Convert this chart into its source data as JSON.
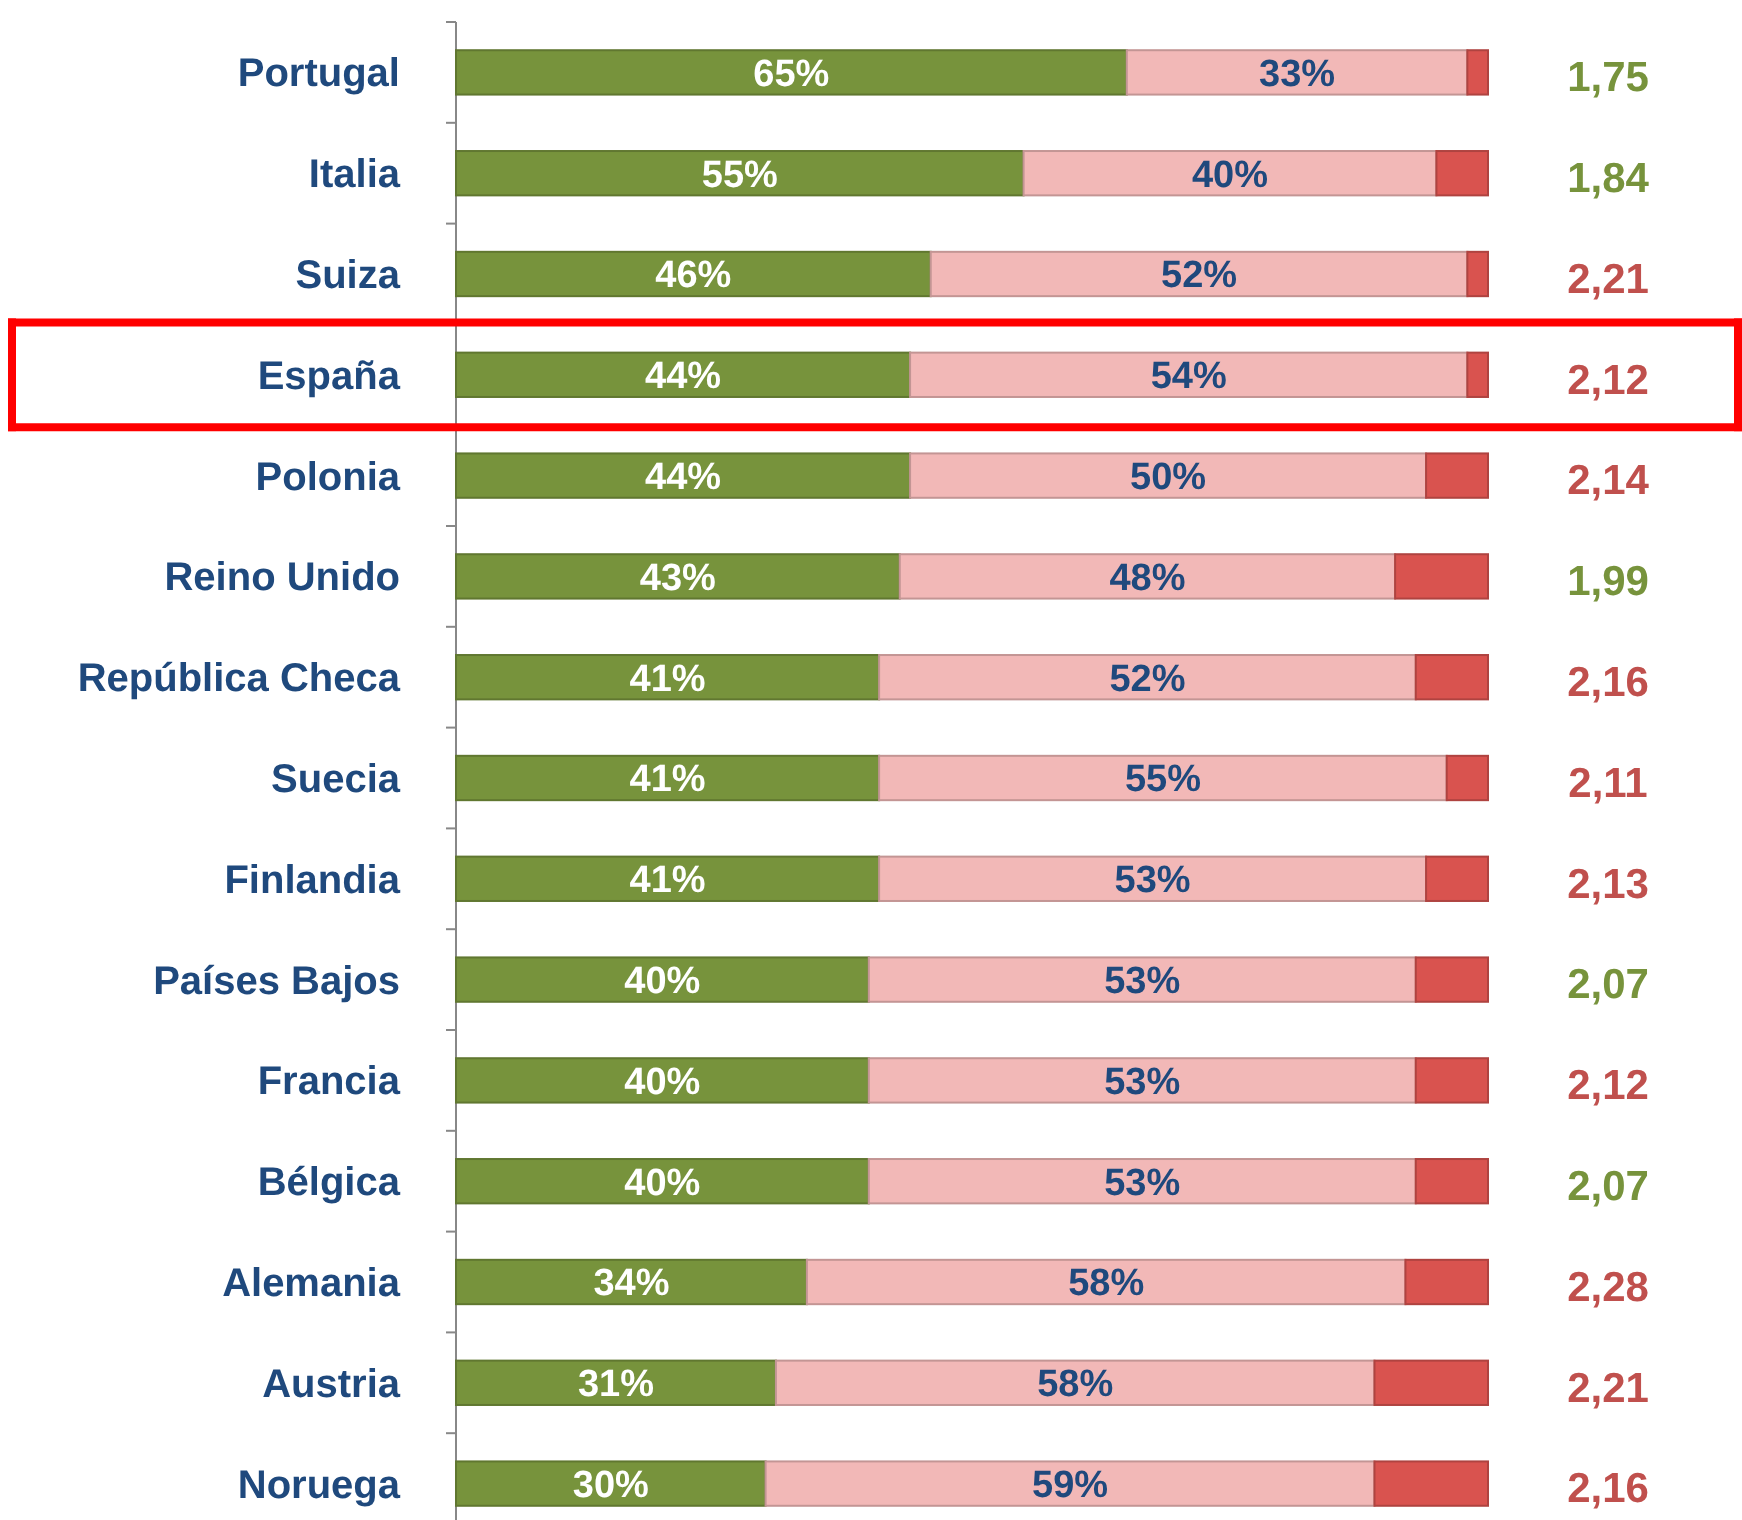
{
  "chart_data": [
    {
      "type": "bar",
      "orientation": "horizontal",
      "stacked": true,
      "xlim": [
        0,
        100
      ],
      "tick_labels": "y",
      "categories": [
        "Portugal",
        "Italia",
        "Suiza",
        "España",
        "Polonia",
        "Reino Unido",
        "República Checa",
        "Suecia",
        "Finlandia",
        "Países Bajos",
        "Francia",
        "Bélgica",
        "Alemania",
        "Austria",
        "Noruega"
      ],
      "series": [
        {
          "color": "#77933c",
          "values": [
            65,
            55,
            46,
            44,
            44,
            43,
            41,
            41,
            41,
            40,
            40,
            40,
            34,
            31,
            30
          ],
          "value_labels": [
            "65%",
            "55%",
            "46%",
            "44%",
            "44%",
            "43%",
            "41%",
            "41%",
            "41%",
            "40%",
            "40%",
            "40%",
            "34%",
            "31%",
            "30%"
          ]
        },
        {
          "color": "#f2b8b7",
          "values": [
            33,
            40,
            52,
            54,
            50,
            48,
            52,
            55,
            53,
            53,
            53,
            53,
            58,
            58,
            59
          ],
          "value_labels": [
            "33%",
            "40%",
            "52%",
            "54%",
            "50%",
            "48%",
            "52%",
            "55%",
            "53%",
            "53%",
            "53%",
            "53%",
            "58%",
            "58%",
            "59%"
          ]
        },
        {
          "color": "#d9534f",
          "values": [
            2,
            5,
            2,
            2,
            6,
            9,
            7,
            4,
            6,
            7,
            7,
            7,
            8,
            11,
            11
          ]
        }
      ]
    },
    {
      "type": "other",
      "categories": [
        null,
        null,
        null,
        null,
        null,
        null,
        null,
        null,
        null,
        null,
        null,
        null,
        null,
        null,
        null
      ],
      "value_labels": [
        "1,75",
        "1,84",
        "2,21",
        "2,12",
        "2,14",
        "1,99",
        "2,16",
        "2,11",
        "2,13",
        "2,07",
        "2,12",
        "2,07",
        "2,28",
        "2,21",
        "2,16"
      ],
      "colors": [
        "#77933c",
        "#77933c",
        "#c0504d",
        "#c0504d",
        "#c0504d",
        "#77933c",
        "#c0504d",
        "#c0504d",
        "#c0504d",
        "#77933c",
        "#c0504d",
        "#77933c",
        "#c0504d",
        "#c0504d",
        "#c0504d"
      ]
    }
  ]
}
